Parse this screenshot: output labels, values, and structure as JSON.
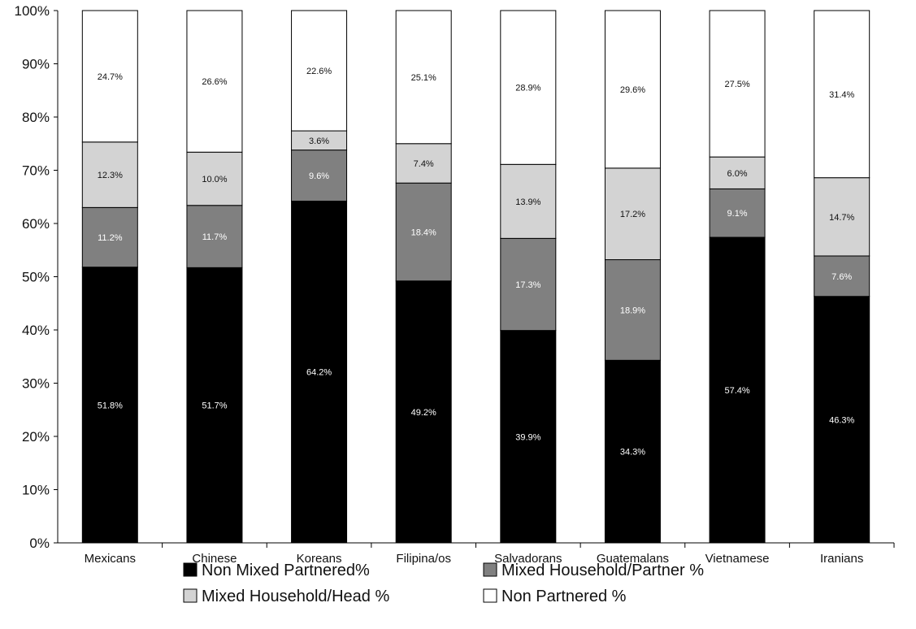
{
  "chart_data": {
    "type": "bar",
    "stacked": true,
    "categories": [
      "Mexicans",
      "Chinese",
      "Koreans",
      "Filipina/os",
      "Salvadorans",
      "Guatemalans",
      "Vietnamese",
      "Iranians"
    ],
    "ylim": [
      0,
      100
    ],
    "yticks": [
      "0%",
      "10%",
      "20%",
      "30%",
      "40%",
      "50%",
      "60%",
      "70%",
      "80%",
      "90%",
      "100%"
    ],
    "series": [
      {
        "name": "Non Mixed Partnered%",
        "color": "#000000",
        "label_color": "#ffffff",
        "values": [
          51.8,
          51.7,
          64.2,
          49.2,
          39.9,
          34.3,
          57.4,
          46.3
        ],
        "labels": [
          "51.8%",
          "51.7%",
          "64.2%",
          "49.2%",
          "39.9%",
          "34.3%",
          "57.4%",
          "46.3%"
        ]
      },
      {
        "name": "Mixed Household/Partner %",
        "color": "#808080",
        "label_color": "#ffffff",
        "values": [
          11.2,
          11.7,
          9.6,
          18.4,
          17.3,
          18.9,
          9.1,
          7.6
        ],
        "labels": [
          "11.2%",
          "11.7%",
          "9.6%",
          "18.4%",
          "17.3%",
          "18.9%",
          "9.1%",
          "7.6%"
        ]
      },
      {
        "name": "Mixed Household/Head %",
        "color": "#d3d3d3",
        "label_color": "#111111",
        "values": [
          12.3,
          10.0,
          3.6,
          7.4,
          13.9,
          17.2,
          6.0,
          14.7
        ],
        "labels": [
          "12.3%",
          "10.0%",
          "3.6%",
          "7.4%",
          "13.9%",
          "17.2%",
          "6.0%",
          "14.7%"
        ]
      },
      {
        "name": "Non Partnered %",
        "color": "#ffffff",
        "label_color": "#111111",
        "values": [
          24.7,
          26.6,
          22.6,
          25.1,
          28.9,
          29.6,
          27.5,
          31.4
        ],
        "labels": [
          "24.7%",
          "26.6%",
          "22.6%",
          "25.1%",
          "28.9%",
          "29.6%",
          "27.5%",
          "31.4%"
        ]
      }
    ],
    "legend": {
      "position": "bottom",
      "order": [
        0,
        1,
        2,
        3
      ]
    },
    "grid": false
  }
}
